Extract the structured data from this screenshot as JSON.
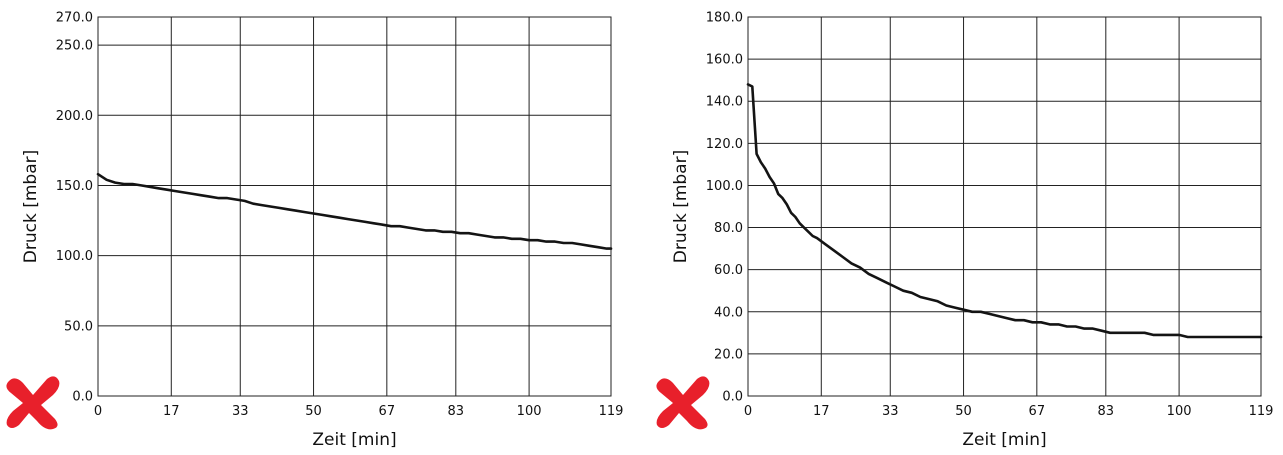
{
  "chart_data": [
    {
      "type": "line",
      "title": "",
      "xlabel": "Zeit [min]",
      "ylabel": "Druck [mbar]",
      "x_ticks": [
        0,
        17,
        33,
        50,
        67,
        83,
        100,
        119
      ],
      "y_ticks": [
        0.0,
        50.0,
        100.0,
        150.0,
        200.0,
        250.0,
        270.0
      ],
      "y_tick_labels": [
        "0.0",
        "50.0",
        "100.0",
        "150.0",
        "200.0",
        "250.0",
        "270.0"
      ],
      "xlim": [
        0,
        119
      ],
      "ylim": [
        0,
        270
      ],
      "grid": true,
      "marker": "red-x-icon",
      "marker_color": "#e8202b",
      "series": [
        {
          "color": "#141414",
          "x": [
            0,
            2,
            4,
            6,
            8,
            10,
            12,
            14,
            16,
            18,
            20,
            22,
            24,
            26,
            28,
            30,
            32,
            34,
            36,
            38,
            40,
            42,
            44,
            46,
            48,
            50,
            52,
            54,
            56,
            58,
            60,
            62,
            64,
            66,
            68,
            70,
            72,
            74,
            76,
            78,
            80,
            82,
            84,
            86,
            88,
            90,
            92,
            94,
            96,
            98,
            100,
            102,
            104,
            106,
            108,
            110,
            112,
            114,
            116,
            118,
            119
          ],
          "y": [
            158,
            154,
            152,
            151,
            151,
            150,
            149,
            148,
            147,
            146,
            145,
            144,
            143,
            142,
            141,
            141,
            140,
            139,
            137,
            136,
            135,
            134,
            133,
            132,
            131,
            130,
            129,
            128,
            127,
            126,
            125,
            124,
            123,
            122,
            121,
            121,
            120,
            119,
            118,
            118,
            117,
            117,
            116,
            116,
            115,
            114,
            113,
            113,
            112,
            112,
            111,
            111,
            110,
            110,
            109,
            109,
            108,
            107,
            106,
            105,
            105
          ]
        }
      ]
    },
    {
      "type": "line",
      "title": "",
      "xlabel": "Zeit [min]",
      "ylabel": "Druck [mbar]",
      "x_ticks": [
        0,
        17,
        33,
        50,
        67,
        83,
        100,
        119
      ],
      "y_ticks": [
        0.0,
        20.0,
        40.0,
        60.0,
        80.0,
        100.0,
        120.0,
        140.0,
        160.0,
        180.0
      ],
      "y_tick_labels": [
        "0.0",
        "20.0",
        "40.0",
        "60.0",
        "80.0",
        "100.0",
        "120.0",
        "140.0",
        "160.0",
        "180.0"
      ],
      "xlim": [
        0,
        119
      ],
      "ylim": [
        0,
        180
      ],
      "grid": true,
      "marker": "red-x-icon",
      "marker_color": "#e8202b",
      "series": [
        {
          "color": "#141414",
          "x": [
            0,
            1,
            2,
            3,
            4,
            5,
            6,
            7,
            8,
            9,
            10,
            11,
            12,
            13,
            14,
            15,
            16,
            18,
            20,
            22,
            24,
            26,
            28,
            30,
            32,
            34,
            36,
            38,
            40,
            42,
            44,
            46,
            48,
            50,
            52,
            54,
            56,
            58,
            60,
            62,
            64,
            66,
            68,
            70,
            72,
            74,
            76,
            78,
            80,
            82,
            84,
            86,
            88,
            90,
            92,
            94,
            96,
            98,
            100,
            102,
            104,
            110,
            119
          ],
          "y": [
            148,
            147,
            115,
            111,
            108,
            104,
            101,
            96,
            94,
            91,
            87,
            85,
            82,
            80,
            78,
            76,
            75,
            72,
            69,
            66,
            63,
            61,
            58,
            56,
            54,
            52,
            50,
            49,
            47,
            46,
            45,
            43,
            42,
            41,
            40,
            40,
            39,
            38,
            37,
            36,
            36,
            35,
            35,
            34,
            34,
            33,
            33,
            32,
            32,
            31,
            30,
            30,
            30,
            30,
            30,
            29,
            29,
            29,
            29,
            28,
            28,
            28,
            28
          ]
        }
      ]
    }
  ]
}
